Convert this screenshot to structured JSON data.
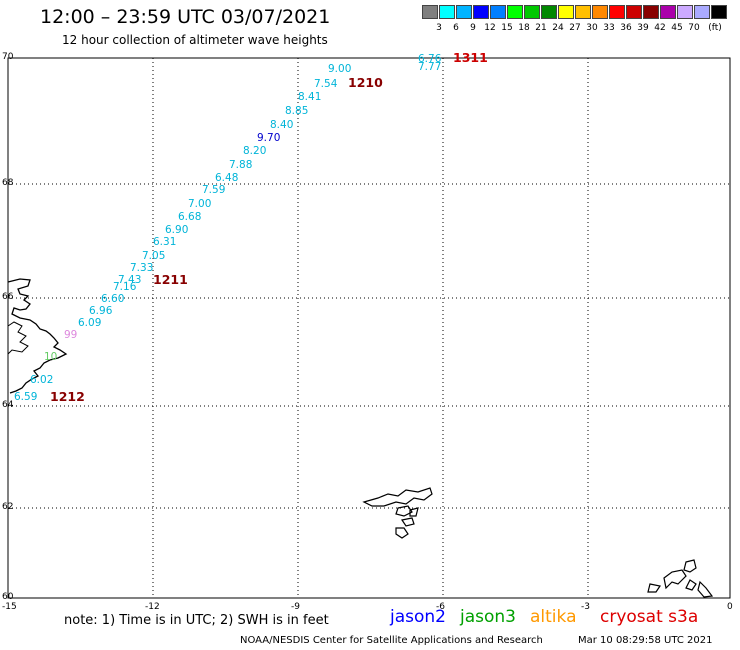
{
  "header": {
    "title": "12:00 – 23:59 UTC 03/07/2021",
    "subtitle": "12 hour collection of altimeter wave heights"
  },
  "legend": {
    "unit": "(ft)",
    "colors": [
      "#7f7f7f",
      "#00ffff",
      "#00b4ff",
      "#0000ff",
      "#007fff",
      "#00ff00",
      "#00c800",
      "#008800",
      "#ffff00",
      "#ffbf00",
      "#ff8800",
      "#ff0000",
      "#cc0000",
      "#880000",
      "#aa00aa",
      "#ccaaff",
      "#aaaaff",
      "#000000"
    ],
    "values": [
      "3",
      "6",
      "9",
      "12",
      "15",
      "18",
      "21",
      "24",
      "27",
      "30",
      "33",
      "36",
      "39",
      "42",
      "45",
      "70"
    ]
  },
  "axes": {
    "y_ticks": [
      "70",
      "68",
      "66",
      "64",
      "62",
      "60"
    ],
    "x_ticks": [
      "-15",
      "-12",
      "-9",
      "-6",
      "-3",
      "0"
    ]
  },
  "map_labels": {
    "times": [
      {
        "text": "1311",
        "color": "#cc0000"
      },
      {
        "text": "1210",
        "color": "#880000"
      },
      {
        "text": "1211",
        "color": "#880000"
      },
      {
        "text": "1212",
        "color": "#880000"
      }
    ],
    "heights": [
      {
        "text": "6.76",
        "color": "#00b4d8"
      },
      {
        "text": "7.77",
        "color": "#00b4d8"
      },
      {
        "text": "9.00",
        "color": "#00b4d8"
      },
      {
        "text": "7.54",
        "color": "#00b4d8"
      },
      {
        "text": "8.41",
        "color": "#00b4d8"
      },
      {
        "text": "8.85",
        "color": "#00b4d8"
      },
      {
        "text": "8.40",
        "color": "#00b4d8"
      },
      {
        "text": "9.70",
        "color": "#0000cc"
      },
      {
        "text": "8.20",
        "color": "#00b4d8"
      },
      {
        "text": "7.88",
        "color": "#00b4d8"
      },
      {
        "text": "6.48",
        "color": "#00b4d8"
      },
      {
        "text": "7.59",
        "color": "#00b4d8"
      },
      {
        "text": "7.00",
        "color": "#00b4d8"
      },
      {
        "text": "6.68",
        "color": "#00b4d8"
      },
      {
        "text": "6.90",
        "color": "#00b4d8"
      },
      {
        "text": "6.31",
        "color": "#00b4d8"
      },
      {
        "text": "7.05",
        "color": "#00b4d8"
      },
      {
        "text": "7.33",
        "color": "#00b4d8"
      },
      {
        "text": "7.43",
        "color": "#00b4d8"
      },
      {
        "text": "7.16",
        "color": "#00b4d8"
      },
      {
        "text": "6.60",
        "color": "#00b4d8"
      },
      {
        "text": "6.96",
        "color": "#00b4d8"
      },
      {
        "text": "6.09",
        "color": "#00b4d8"
      },
      {
        "text": "99",
        "color": "#dd88dd"
      },
      {
        "text": "10",
        "color": "#66cc66"
      },
      {
        "text": "6.02",
        "color": "#00b4d8"
      },
      {
        "text": "6.59",
        "color": "#00b4d8"
      }
    ]
  },
  "footer": {
    "note": "note: 1) Time is in UTC; 2) SWH is in feet",
    "satellites": [
      {
        "name": "jason2",
        "color": "#0000ff"
      },
      {
        "name": "jason3",
        "color": "#00a000"
      },
      {
        "name": "altika",
        "color": "#ff9900"
      },
      {
        "name": "cryosat s3a",
        "color": "#dd0000"
      }
    ],
    "credit": "NOAA/NESDIS Center for Satellite Applications and Research",
    "timestamp": "Mar 10 08:29:58 UTC 2021"
  }
}
